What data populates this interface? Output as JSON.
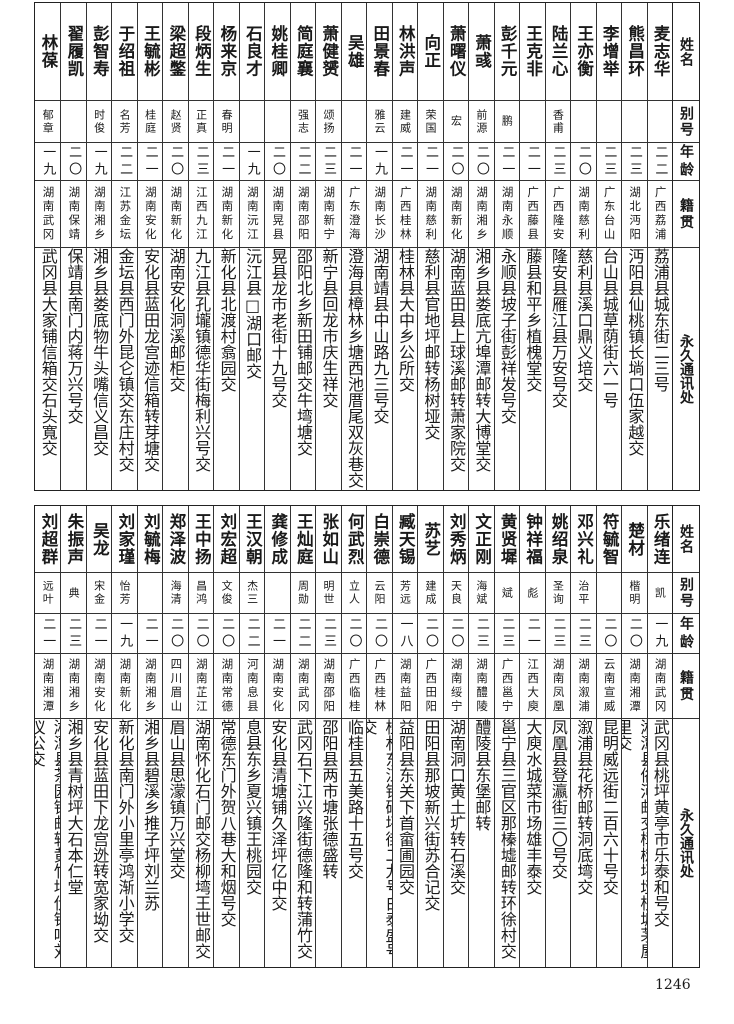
{
  "headers": {
    "name": "姓名",
    "alias": "别号",
    "age": "年龄",
    "native": "籍贯",
    "address": "永久通讯处"
  },
  "tables": [
    {
      "rows": [
        {
          "name": "麦志华",
          "alias": "",
          "age": "二二",
          "native": "广西荔浦",
          "address": "荔浦县城东街二三号"
        },
        {
          "name": "熊昌环",
          "alias": "",
          "age": "二三",
          "native": "湖北沔阳",
          "address": "沔阳县仙桃镇长埫口伍家越交"
        },
        {
          "name": "李增举",
          "alias": "",
          "age": "二三",
          "native": "广东台山",
          "address": "台山县城草荫街六一号"
        },
        {
          "name": "王亦衡",
          "alias": "",
          "age": "二〇",
          "native": "湖南慈利",
          "address": "慈利县溪口鼎义培交"
        },
        {
          "name": "陆兰心",
          "alias": "香甫",
          "age": "二三",
          "native": "广西隆安",
          "address": "隆安县雁江县万安号交"
        },
        {
          "name": "王克非",
          "alias": "",
          "age": "二一",
          "native": "广西藤县",
          "address": "藤县和平乡植槐堂交"
        },
        {
          "name": "彭千元",
          "alias": "鹏",
          "age": "二一",
          "native": "湖南永顺",
          "address": "永顺县坡子街彭祥发号交"
        },
        {
          "name": "萧彧",
          "alias": "前源",
          "age": "二〇",
          "native": "湖南湘乡",
          "address": "湘乡县娄底亢埠潭邮转大博堂交"
        },
        {
          "name": "萧曙仪",
          "alias": "宏",
          "age": "二〇",
          "native": "湖南新化",
          "address": "湖南蓝田县上球溪邮转萧家院交"
        },
        {
          "name": "向正",
          "alias": "荣国",
          "age": "二一",
          "native": "湖南慈利",
          "address": "慈利县官地坪邮转杨树垭交"
        },
        {
          "name": "林洪声",
          "alias": "建威",
          "age": "二一",
          "native": "广西桂林",
          "address": "桂林县大中乡公所交"
        },
        {
          "name": "田景春",
          "alias": "雅云",
          "age": "一九",
          "native": "湖南长沙",
          "address": "湖南靖县中山路九三号交"
        },
        {
          "name": "吴雄",
          "alias": "",
          "age": "二一",
          "native": "广东澄海",
          "address": "澄海县樟林乡塘西池厝尾双灰巷交"
        },
        {
          "name": "萧健赟",
          "alias": "颂扬",
          "age": "二三",
          "native": "湖南新宁",
          "address": "新宁县回龙市庆生祥交"
        },
        {
          "name": "简庭襄",
          "alias": "强志",
          "age": "二二",
          "native": "湖南邵阳",
          "address": "邵阳北乡新田铺邮交牛塆塘交"
        },
        {
          "name": "姚桂卿",
          "alias": "",
          "age": "二〇",
          "native": "湖南晃县",
          "address": "晃县龙市老街十九号交"
        },
        {
          "name": "石良才",
          "alias": "",
          "age": "一九",
          "native": "湖南沅江",
          "address": "沅江县□湖口邮交"
        },
        {
          "name": "杨来京",
          "alias": "春明",
          "age": "二一",
          "native": "湖南新化",
          "address": "新化县北渡村翕园交"
        },
        {
          "name": "段炳生",
          "alias": "正真",
          "age": "二三",
          "native": "江西九江",
          "address": "九江县孔壠镇德华街梅利兴号交"
        },
        {
          "name": "梁超鐅",
          "alias": "赵贤",
          "age": "二〇",
          "native": "湖南新化",
          "address": "湖南安化洞溪邮柜交"
        },
        {
          "name": "王毓彬",
          "alias": "桂庭",
          "age": "二一",
          "native": "湖南安化",
          "address": "安化县蓝田龙宫迹信箱转芽塘交"
        },
        {
          "name": "于绍祖",
          "alias": "名芳",
          "age": "二二",
          "native": "江苏金坛",
          "address": "金坛县西门外昆仑镇交东庄村交"
        },
        {
          "name": "彭智寿",
          "alias": "时俊",
          "age": "一九",
          "native": "湖南湘乡",
          "address": "湘乡县娄底物牛头嘴信义昌交"
        },
        {
          "name": "翟履凯",
          "alias": "",
          "age": "二〇",
          "native": "湖南保靖",
          "address": "保靖县南门内蒋万兴号交"
        },
        {
          "name": "林葆",
          "alias": "郁章",
          "age": "一九",
          "native": "湖南武冈",
          "address": "武冈县大家铺信箱交石头寬交"
        }
      ]
    },
    {
      "rows": [
        {
          "name": "乐绪连",
          "alias": "凯",
          "age": "一九",
          "native": "湖南武冈",
          "address": "武冈县桃坪黄亭市乐泰和号交"
        },
        {
          "name": "楚材",
          "alias": "楷明",
          "age": "二〇",
          "native": "湖南湘潭",
          "address": "湘潭县俗河邮交樟树坪垭枝塘茅屋里交"
        },
        {
          "name": "符毓智",
          "alias": "",
          "age": "二〇",
          "native": "云南宣威",
          "address": "昆明威远街二百六十号交"
        },
        {
          "name": "邓兴礼",
          "alias": "治平",
          "age": "二三",
          "native": "湖南溆浦",
          "address": "溆浦县花桥邮转洞底塆交"
        },
        {
          "name": "姚绍泉",
          "alias": "圣询",
          "age": "二三",
          "native": "湖南凤凰",
          "address": "凤凰县登瀛街三〇号交"
        },
        {
          "name": "钟祥福",
          "alias": "彪",
          "age": "二一",
          "native": "江西大庾",
          "address": "大庾水城菜市场雄丰泰交"
        },
        {
          "name": "黄贤墀",
          "alias": "斌",
          "age": "二三",
          "native": "广西邕宁",
          "address": "邕宁县三官区那榛墟邮转环徐村交"
        },
        {
          "name": "文正刚",
          "alias": "海斌",
          "age": "二三",
          "native": "湖南醴陵",
          "address": "醴陵县东堡邮转"
        },
        {
          "name": "刘秀炳",
          "alias": "天良",
          "age": "二〇",
          "native": "湖南绥宁",
          "address": "湖南洞口黄土圹转石溪交"
        },
        {
          "name": "苏艺",
          "alias": "建成",
          "age": "二〇",
          "native": "广西田阳",
          "address": "田阳县那坡新兴街苏合记交"
        },
        {
          "name": "臧天锡",
          "alias": "芳远",
          "age": "一八",
          "native": "湖南益阳",
          "address": "益阳县东关下首畲圃园交"
        },
        {
          "name": "白崇德",
          "alias": "云阳",
          "age": "二〇",
          "native": "广西桂林",
          "address": "桂林东江镇码坪街二九号白泰盛号交"
        },
        {
          "name": "何武烈",
          "alias": "立人",
          "age": "二〇",
          "native": "广西临桂",
          "address": "临桂县五美路十五号交"
        },
        {
          "name": "张如山",
          "alias": "明世",
          "age": "二三",
          "native": "湖南邵阳",
          "address": "邵阳县两市塘张德盛转"
        },
        {
          "name": "王灿庭",
          "alias": "周勋",
          "age": "二二",
          "native": "湖南武冈",
          "address": "武冈石下江兴隆街德隆和转蒲竹交"
        },
        {
          "name": "龚修成",
          "alias": "",
          "age": "二一",
          "native": "湖南安化",
          "address": "安化县清塘铺久泽坪亿中交"
        },
        {
          "name": "王汉朝",
          "alias": "杰三",
          "age": "二二",
          "native": "河南息县",
          "address": "息县东乡夏兴镇王桃园交"
        },
        {
          "name": "刘宏超",
          "alias": "文俊",
          "age": "二〇",
          "native": "湖南常德",
          "address": "常德东门外贺八巷大和烟号交"
        },
        {
          "name": "王中扬",
          "alias": "昌鸿",
          "age": "二〇",
          "native": "湖南芷江",
          "address": "湖南怀化石门邮交杨柳塆王世邮交"
        },
        {
          "name": "郑泽波",
          "alias": "海清",
          "age": "二〇",
          "native": "四川眉山",
          "address": "眉山县思濛镇万兴堂交"
        },
        {
          "name": "刘毓梅",
          "alias": "",
          "age": "二一",
          "native": "湖南湘乡",
          "address": "湘乡县碧溪乡推子坪刘兰苏"
        },
        {
          "name": "刘家瑾",
          "alias": "怡芳",
          "age": "一九",
          "native": "湖南新化",
          "address": "新化县南门外小里亭鸿渐小学交"
        },
        {
          "name": "吴龙",
          "alias": "宋金",
          "age": "二一",
          "native": "湖南安化",
          "address": "安化县蓝田下龙宫迯转宽家坳交"
        },
        {
          "name": "朱振声",
          "alias": "典",
          "age": "二三",
          "native": "湖南湘乡",
          "address": "湘乡县青树坪大石本仁堂"
        },
        {
          "name": "刘超群",
          "alias": "远叶",
          "age": "二一",
          "native": "湖南湘潭",
          "address": "湘潭县茶园铺邮转黄竹坤伏铺咀刘仪公交"
        }
      ]
    }
  ],
  "page_number": "1246"
}
